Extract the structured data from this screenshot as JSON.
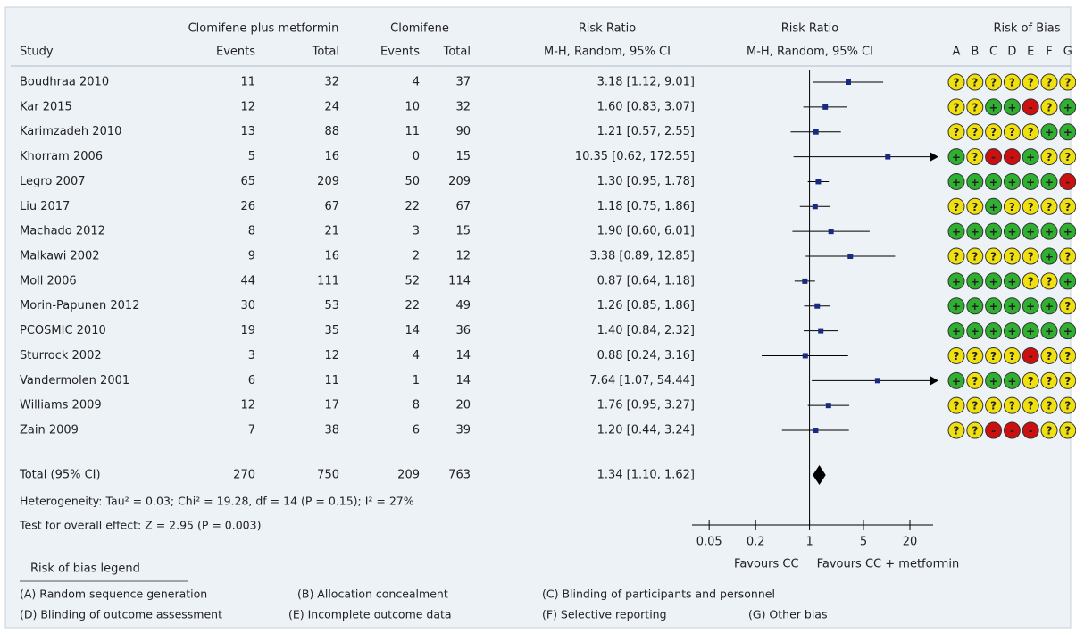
{
  "chart_data": {
    "type": "forest",
    "group_headers": [
      "Clomifene plus metformin",
      "Clomifene",
      "Risk Ratio",
      "Risk Ratio",
      "Risk of Bias"
    ],
    "column_headers": [
      "Study",
      "Events",
      "Total",
      "Events",
      "Total",
      "M-H, Random, 95% CI",
      "M-H, Random, 95% CI"
    ],
    "studies": [
      "Boudhraa 2010",
      "Kar 2015",
      "Karimzadeh 2010",
      "Khorram 2006",
      "Legro 2007",
      "Liu 2017",
      "Machado 2012",
      "Malkawi 2002",
      "Moll 2006",
      "Morin-Papunen 2012",
      "PCOSMIC 2010",
      "Sturrock 2002",
      "Vandermolen 2001",
      "Williams 2009",
      "Zain 2009"
    ],
    "events_exp": [
      11,
      12,
      13,
      5,
      65,
      26,
      8,
      9,
      44,
      30,
      19,
      3,
      6,
      12,
      7
    ],
    "total_exp": [
      32,
      24,
      88,
      16,
      209,
      67,
      21,
      16,
      111,
      53,
      35,
      12,
      11,
      17,
      38
    ],
    "events_ctrl": [
      4,
      10,
      11,
      0,
      50,
      22,
      3,
      2,
      52,
      22,
      14,
      4,
      1,
      8,
      6
    ],
    "total_ctrl": [
      37,
      32,
      90,
      15,
      209,
      67,
      15,
      12,
      114,
      49,
      36,
      14,
      14,
      20,
      39
    ],
    "rr": [
      3.18,
      1.6,
      1.21,
      10.35,
      1.3,
      1.18,
      1.9,
      3.38,
      0.87,
      1.26,
      1.4,
      0.88,
      7.64,
      1.76,
      1.2
    ],
    "ci_lower": [
      1.12,
      0.83,
      0.57,
      0.62,
      0.95,
      0.75,
      0.6,
      0.89,
      0.64,
      0.85,
      0.84,
      0.24,
      1.07,
      0.95,
      0.44
    ],
    "ci_upper": [
      9.01,
      3.07,
      2.55,
      172.55,
      1.78,
      1.86,
      6.01,
      12.85,
      1.18,
      1.86,
      2.32,
      3.16,
      54.44,
      3.27,
      3.24
    ],
    "ci_labels": [
      "3.18 [1.12, 9.01]",
      "1.60 [0.83, 3.07]",
      "1.21 [0.57, 2.55]",
      "10.35 [0.62, 172.55]",
      "1.30 [0.95, 1.78]",
      "1.18 [0.75, 1.86]",
      "1.90 [0.60, 6.01]",
      "3.38 [0.89, 12.85]",
      "0.87 [0.64, 1.18]",
      "1.26 [0.85, 1.86]",
      "1.40 [0.84, 2.32]",
      "0.88 [0.24, 3.16]",
      "7.64 [1.07, 54.44]",
      "1.76 [0.95, 3.27]",
      "1.20 [0.44, 3.24]"
    ],
    "point_color": "#1a2a80",
    "rob_domains": [
      "A",
      "B",
      "C",
      "D",
      "E",
      "F",
      "G"
    ],
    "rob": [
      [
        "?",
        "?",
        "?",
        "?",
        "?",
        "?",
        "?"
      ],
      [
        "?",
        "?",
        "+",
        "+",
        "-",
        "?",
        "+"
      ],
      [
        "?",
        "?",
        "?",
        "?",
        "?",
        "+",
        "+"
      ],
      [
        "+",
        "?",
        "-",
        "-",
        "+",
        "?",
        "?"
      ],
      [
        "+",
        "+",
        "+",
        "+",
        "+",
        "+",
        "-"
      ],
      [
        "?",
        "?",
        "+",
        "?",
        "?",
        "?",
        "?"
      ],
      [
        "+",
        "+",
        "+",
        "+",
        "+",
        "+",
        "+"
      ],
      [
        "?",
        "?",
        "?",
        "?",
        "?",
        "+",
        "?"
      ],
      [
        "+",
        "+",
        "+",
        "+",
        "?",
        "?",
        "+"
      ],
      [
        "+",
        "+",
        "+",
        "+",
        "+",
        "+",
        "?"
      ],
      [
        "+",
        "+",
        "+",
        "+",
        "+",
        "+",
        "+"
      ],
      [
        "?",
        "?",
        "?",
        "?",
        "-",
        "?",
        "?"
      ],
      [
        "+",
        "?",
        "+",
        "+",
        "?",
        "?",
        "?"
      ],
      [
        "?",
        "?",
        "?",
        "?",
        "?",
        "?",
        "?"
      ],
      [
        "?",
        "?",
        "-",
        "-",
        "-",
        "?",
        "?"
      ]
    ],
    "rob_colors": {
      "?": "#f0e010",
      "+": "#30b030",
      "-": "#cc1010"
    },
    "total_label": "Total (95% CI)",
    "total_events_exp": 270,
    "total_total_exp": 750,
    "total_events_ctrl": 209,
    "total_total_ctrl": 763,
    "total_rr": 1.34,
    "total_lower": 1.1,
    "total_upper": 1.62,
    "total_ci_label": "1.34 [1.10, 1.62]",
    "heterogeneity": "Heterogeneity: Tau² = 0.03; Chi² = 19.28, df = 14 (P = 0.15); I² = 27%",
    "overall_effect": "Test for overall effect: Z = 2.95 (P = 0.003)",
    "xscale": "log",
    "xlim": [
      0.03,
      40
    ],
    "xticks": [
      0.05,
      0.2,
      1,
      5,
      20
    ],
    "favours_left": "Favours CC",
    "favours_right": "Favours CC + metformin",
    "rob_legend_title": "Risk of bias legend",
    "rob_legend": [
      "(A) Random sequence generation",
      "(B) Allocation concealment",
      "(C) Blinding of participants and personnel",
      "(D) Blinding of outcome assessment",
      "(E) Incomplete outcome data",
      "(F) Selective reporting",
      "(G) Other bias"
    ]
  }
}
